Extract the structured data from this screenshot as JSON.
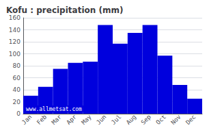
{
  "chart_data": {
    "type": "bar",
    "title": "Kofu : precipitation (mm)",
    "categories": [
      "Jan",
      "Feb",
      "Mar",
      "Apr",
      "May",
      "Jun",
      "Jul",
      "Aug",
      "Sep",
      "Oct",
      "Nov",
      "Dec"
    ],
    "values": [
      30,
      45,
      75,
      85,
      87,
      148,
      117,
      135,
      148,
      97,
      48,
      25
    ],
    "color": "#0000DD",
    "ylim": [
      0,
      160
    ],
    "yticks": [
      0,
      20,
      40,
      60,
      80,
      100,
      120,
      140,
      160
    ],
    "grid": true,
    "annotations": [
      "www.allmetsat.com"
    ]
  }
}
